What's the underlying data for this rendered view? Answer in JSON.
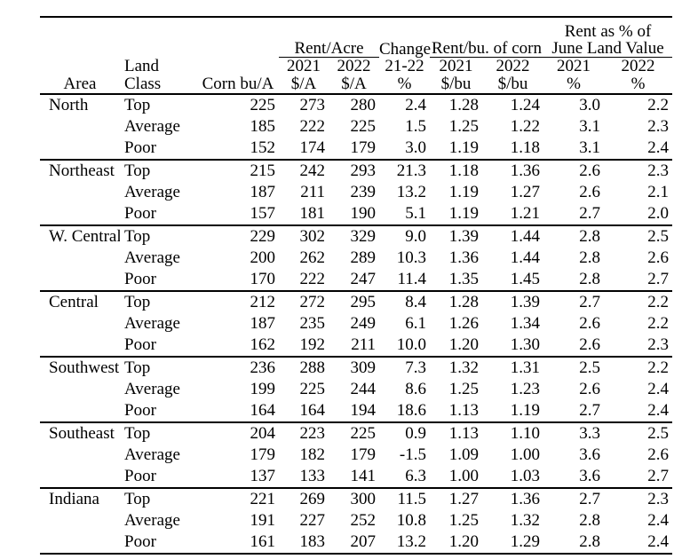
{
  "table": {
    "header": {
      "rent_as_pct_of": "Rent as % of",
      "rent_acre_group": "Rent/Acre",
      "change_group": "Change",
      "rent_bu_group": "Rent/bu. of corn",
      "june_land_group": "June Land Value",
      "land": "Land",
      "y2021": "2021",
      "y2022": "2022",
      "change_years": "21-22",
      "area": "Area",
      "land_class": "Class",
      "corn_bu": "Corn bu/A",
      "dollars_per_acre": "$/A",
      "percent": "%",
      "dollars_per_bu": "$/bu"
    },
    "sections": [
      {
        "area": "North",
        "rows": [
          [
            "Top",
            "225",
            "273",
            "280",
            "2.4",
            "1.28",
            "1.24",
            "3.0",
            "2.2"
          ],
          [
            "Average",
            "185",
            "222",
            "225",
            "1.5",
            "1.25",
            "1.22",
            "3.1",
            "2.3"
          ],
          [
            "Poor",
            "152",
            "174",
            "179",
            "3.0",
            "1.19",
            "1.18",
            "3.1",
            "2.4"
          ]
        ]
      },
      {
        "area": "Northeast",
        "rows": [
          [
            "Top",
            "215",
            "242",
            "293",
            "21.3",
            "1.18",
            "1.36",
            "2.6",
            "2.3"
          ],
          [
            "Average",
            "187",
            "211",
            "239",
            "13.2",
            "1.19",
            "1.27",
            "2.6",
            "2.1"
          ],
          [
            "Poor",
            "157",
            "181",
            "190",
            "5.1",
            "1.19",
            "1.21",
            "2.7",
            "2.0"
          ]
        ]
      },
      {
        "area": "W. Central",
        "rows": [
          [
            "Top",
            "229",
            "302",
            "329",
            "9.0",
            "1.39",
            "1.44",
            "2.8",
            "2.5"
          ],
          [
            "Average",
            "200",
            "262",
            "289",
            "10.3",
            "1.36",
            "1.44",
            "2.8",
            "2.6"
          ],
          [
            "Poor",
            "170",
            "222",
            "247",
            "11.4",
            "1.35",
            "1.45",
            "2.8",
            "2.7"
          ]
        ]
      },
      {
        "area": "Central",
        "rows": [
          [
            "Top",
            "212",
            "272",
            "295",
            "8.4",
            "1.28",
            "1.39",
            "2.7",
            "2.2"
          ],
          [
            "Average",
            "187",
            "235",
            "249",
            "6.1",
            "1.26",
            "1.34",
            "2.6",
            "2.2"
          ],
          [
            "Poor",
            "162",
            "192",
            "211",
            "10.0",
            "1.20",
            "1.30",
            "2.6",
            "2.3"
          ]
        ]
      },
      {
        "area": "Southwest",
        "rows": [
          [
            "Top",
            "236",
            "288",
            "309",
            "7.3",
            "1.32",
            "1.31",
            "2.5",
            "2.2"
          ],
          [
            "Average",
            "199",
            "225",
            "244",
            "8.6",
            "1.25",
            "1.23",
            "2.6",
            "2.4"
          ],
          [
            "Poor",
            "164",
            "164",
            "194",
            "18.6",
            "1.13",
            "1.19",
            "2.7",
            "2.4"
          ]
        ]
      },
      {
        "area": "Southeast",
        "rows": [
          [
            "Top",
            "204",
            "223",
            "225",
            "0.9",
            "1.13",
            "1.10",
            "3.3",
            "2.5"
          ],
          [
            "Average",
            "179",
            "182",
            "179",
            "-1.5",
            "1.09",
            "1.00",
            "3.6",
            "2.6"
          ],
          [
            "Poor",
            "137",
            "133",
            "141",
            "6.3",
            "1.00",
            "1.03",
            "3.6",
            "2.7"
          ]
        ]
      },
      {
        "area": "Indiana",
        "rows": [
          [
            "Top",
            "221",
            "269",
            "300",
            "11.5",
            "1.27",
            "1.36",
            "2.7",
            "2.3"
          ],
          [
            "Average",
            "191",
            "227",
            "252",
            "10.8",
            "1.25",
            "1.32",
            "2.8",
            "2.4"
          ],
          [
            "Poor",
            "161",
            "183",
            "207",
            "13.2",
            "1.20",
            "1.29",
            "2.8",
            "2.4"
          ]
        ]
      }
    ]
  }
}
